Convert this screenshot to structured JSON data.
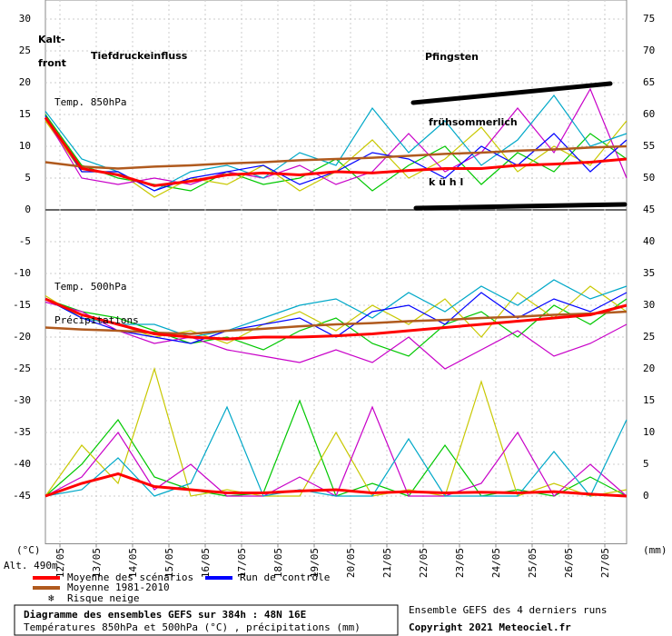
{
  "chart_data": {
    "type": "line",
    "x": [
      0,
      1,
      2,
      3,
      4,
      5,
      6,
      7,
      8,
      9,
      10,
      11,
      12,
      13,
      14,
      15,
      16
    ],
    "xlim": [
      0,
      16
    ],
    "xticks": [
      {
        "value": 0.4,
        "label": "12/05"
      },
      {
        "value": 1.4,
        "label": "13/05"
      },
      {
        "value": 2.4,
        "label": "14/05"
      },
      {
        "value": 3.4,
        "label": "15/05"
      },
      {
        "value": 4.4,
        "label": "16/05"
      },
      {
        "value": 5.4,
        "label": "17/05"
      },
      {
        "value": 6.4,
        "label": "18/05"
      },
      {
        "value": 7.4,
        "label": "19/05"
      },
      {
        "value": 8.4,
        "label": "20/05"
      },
      {
        "value": 9.4,
        "label": "21/05"
      },
      {
        "value": 10.4,
        "label": "22/05"
      },
      {
        "value": 11.4,
        "label": "23/05"
      },
      {
        "value": 12.4,
        "label": "24/05"
      },
      {
        "value": 13.4,
        "label": "25/05"
      },
      {
        "value": 14.4,
        "label": "26/05"
      },
      {
        "value": 15.4,
        "label": "27/05"
      }
    ],
    "ylim": [
      -52.5,
      33
    ],
    "yticks": [
      30,
      25,
      20,
      15,
      10,
      5,
      0,
      -5,
      -10,
      -15,
      -20,
      -25,
      -30,
      -35,
      -40,
      -45
    ],
    "y2lim": [
      -7.5,
      78
    ],
    "y2ticks": [
      75,
      70,
      65,
      60,
      55,
      50,
      45,
      40,
      35,
      30,
      25,
      20,
      15,
      10,
      5,
      0
    ],
    "ylabel": "(°C)",
    "y2label": "(mm)",
    "altitude": "Alt. 490m",
    "grid": true,
    "series": [
      {
        "name": "Moyenne des scénarios",
        "color": "#ff0000",
        "values": [
          14.5,
          6.5,
          5.5,
          3.8,
          4.5,
          5.5,
          5.8,
          5.5,
          6,
          5.8,
          6.2,
          6.5,
          6.5,
          7,
          7.2,
          7.5,
          8
        ]
      },
      {
        "name": "Moyenne 1981-2010",
        "color": "#b05a1e",
        "values": [
          7.5,
          6.8,
          6.5,
          6.8,
          7,
          7.3,
          7.5,
          7.8,
          8,
          8.2,
          8.5,
          8.8,
          9,
          9.3,
          9.5,
          9.8,
          10
        ]
      },
      {
        "name": "Run de contrôle",
        "color": "#0000ff",
        "values": [
          14.8,
          6,
          6,
          3,
          5,
          6,
          7,
          4,
          6,
          9,
          8,
          5,
          10,
          7,
          12,
          6,
          11
        ]
      },
      {
        "color": "#00c800",
        "values": [
          15,
          7,
          5,
          4,
          3,
          6,
          4,
          5,
          8,
          3,
          7,
          10,
          4,
          9,
          6,
          12,
          8
        ]
      },
      {
        "color": "#c8c800",
        "values": [
          14,
          6,
          6,
          2,
          5,
          4,
          7,
          3,
          6,
          11,
          5,
          8,
          13,
          6,
          10,
          7,
          14
        ]
      },
      {
        "color": "#c800c8",
        "values": [
          14.5,
          5,
          4,
          5,
          4,
          6,
          5,
          7,
          4,
          6,
          12,
          6,
          9,
          16,
          9,
          19,
          5
        ]
      },
      {
        "color": "#00a8c8",
        "values": [
          15.5,
          8,
          6,
          3,
          6,
          7,
          5,
          9,
          7,
          16,
          9,
          14,
          7,
          11,
          18,
          10,
          12
        ]
      },
      {
        "color": "#ff0000",
        "values": [
          -14,
          -16.5,
          -18,
          -19.5,
          -20,
          -20.3,
          -20,
          -20,
          -19.8,
          -19.5,
          -19,
          -18.5,
          -18,
          -17.5,
          -17,
          -16.5,
          -15
        ]
      },
      {
        "color": "#b05a1e",
        "values": [
          -18.5,
          -18.8,
          -19,
          -19.3,
          -19.5,
          -19,
          -18.7,
          -18.3,
          -18,
          -17.8,
          -17.5,
          -17.3,
          -17,
          -16.8,
          -16.5,
          -16.3,
          -16
        ]
      },
      {
        "color": "#0000ff",
        "values": [
          -14,
          -17,
          -19,
          -20,
          -21,
          -19,
          -18,
          -17,
          -20,
          -16,
          -15,
          -18,
          -13,
          -17,
          -14,
          -16,
          -13
        ]
      },
      {
        "color": "#00c800",
        "values": [
          -14,
          -16,
          -17,
          -19,
          -21,
          -20,
          -22,
          -19,
          -17,
          -21,
          -23,
          -18,
          -16,
          -20,
          -15,
          -18,
          -14
        ]
      },
      {
        "color": "#c8c800",
        "values": [
          -13.5,
          -17,
          -18,
          -20,
          -19,
          -21,
          -18,
          -16,
          -19,
          -15,
          -18,
          -14,
          -20,
          -13,
          -17,
          -12,
          -16
        ]
      },
      {
        "color": "#c800c8",
        "values": [
          -14.5,
          -16,
          -19,
          -21,
          -20,
          -22,
          -23,
          -24,
          -22,
          -24,
          -20,
          -25,
          -22,
          -19,
          -23,
          -21,
          -18
        ]
      },
      {
        "color": "#00a8c8",
        "values": [
          -14,
          -17,
          -18,
          -18,
          -20,
          -19,
          -17,
          -15,
          -14,
          -17,
          -13,
          -16,
          -12,
          -15,
          -11,
          -14,
          -12
        ]
      },
      {
        "color": "#ff0000",
        "axis": "y2",
        "values": [
          0,
          2,
          3.5,
          1.5,
          1,
          0.5,
          0.5,
          0.8,
          1,
          0.5,
          0.7,
          0.5,
          0.6,
          0.5,
          0.7,
          0.3,
          0
        ]
      },
      {
        "color": "#00c800",
        "axis": "y2",
        "values": [
          0,
          5,
          12,
          3,
          1,
          0,
          0.5,
          15,
          0,
          2,
          0,
          8,
          0,
          1,
          0,
          3,
          0
        ]
      },
      {
        "color": "#c8c800",
        "axis": "y2",
        "values": [
          0,
          8,
          2,
          20,
          0,
          1,
          0,
          0,
          10,
          0,
          1,
          0,
          18,
          0,
          2,
          0,
          1
        ]
      },
      {
        "color": "#c800c8",
        "axis": "y2",
        "values": [
          0,
          3,
          10,
          1,
          5,
          0,
          0,
          3,
          0,
          14,
          0,
          0,
          2,
          10,
          0,
          5,
          0
        ]
      },
      {
        "color": "#00a8c8",
        "axis": "y2",
        "values": [
          0,
          1,
          6,
          0,
          2,
          14,
          0,
          1,
          0,
          0,
          9,
          0,
          0,
          0,
          7,
          0,
          12
        ]
      }
    ],
    "snow_label": "Risque neige",
    "panel_labels": [
      "Temp. 850hPa",
      "Temp. 500hPa",
      "Précipitations"
    ],
    "annotations": [
      "Kalt-",
      "front",
      "Tiefdruckeinfluss",
      "Pfingsten",
      "frühsommerlich",
      "k ü h l"
    ],
    "title": "Diagramme des ensembles GEFS sur 384h : 48N 16E",
    "subtitle": "Températures 850hPa et 500hPa (°C) , précipitations (mm)",
    "source": "Ensemble GEFS des 4 derniers runs",
    "copyright": "Copyright 2021 Meteociel.fr"
  }
}
